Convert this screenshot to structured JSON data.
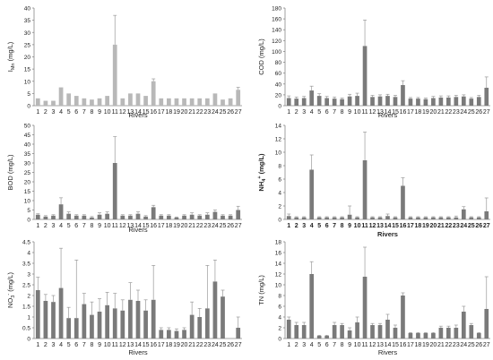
{
  "chart_data": [
    {
      "type": "bar",
      "title": "",
      "xlabel": "Rivers",
      "ylabel": "I_Mn (mg/L)",
      "ylim": [
        0,
        40
      ],
      "yticks": [
        0,
        5,
        10,
        15,
        20,
        25,
        30,
        35,
        40
      ],
      "categories": [
        "1",
        "2",
        "3",
        "4",
        "5",
        "6",
        "7",
        "8",
        "9",
        "10",
        "11",
        "12",
        "13",
        "14",
        "15",
        "16",
        "17",
        "18",
        "19",
        "20",
        "21",
        "22",
        "23",
        "24",
        "25",
        "26",
        "27"
      ],
      "values": [
        3,
        2,
        2,
        7.5,
        5,
        4,
        3,
        2.5,
        3,
        4,
        25,
        3,
        5,
        5,
        4,
        10,
        3,
        3,
        3,
        3,
        3,
        3,
        3,
        5,
        2.5,
        3,
        6.5
      ],
      "errors": [
        0,
        0,
        0,
        0,
        0,
        0,
        0,
        0,
        0,
        0,
        12,
        0,
        0,
        0,
        0,
        1,
        0,
        0,
        0,
        0,
        0,
        0,
        0,
        0,
        0,
        0,
        1
      ],
      "bar_color": "#b8b8b8",
      "grid": false
    },
    {
      "type": "bar",
      "title": "",
      "xlabel": "Rivers",
      "ylabel": "COD (mg/L)",
      "ylim": [
        0,
        180
      ],
      "yticks": [
        0,
        20,
        40,
        60,
        80,
        100,
        120,
        140,
        160,
        180
      ],
      "categories": [
        "1",
        "2",
        "3",
        "4",
        "5",
        "6",
        "7",
        "8",
        "9",
        "10",
        "11",
        "12",
        "13",
        "14",
        "15",
        "16",
        "17",
        "18",
        "19",
        "20",
        "21",
        "22",
        "23",
        "24",
        "25",
        "26",
        "27"
      ],
      "values": [
        14,
        13,
        14,
        28,
        18,
        14,
        13,
        12,
        17,
        18,
        110,
        16,
        17,
        18,
        16,
        38,
        13,
        13,
        12,
        14,
        15,
        15,
        16,
        17,
        13,
        16,
        33
      ],
      "errors": [
        4,
        3,
        3,
        8,
        4,
        3,
        3,
        2,
        4,
        5,
        48,
        3,
        3,
        3,
        3,
        8,
        2,
        2,
        2,
        3,
        3,
        3,
        3,
        3,
        2,
        3,
        20
      ],
      "bar_color": "#7a7a7a",
      "grid": false
    },
    {
      "type": "bar",
      "title": "",
      "xlabel": "Rivers",
      "ylabel": "BOD (mg/L)",
      "ylim": [
        0,
        50
      ],
      "yticks": [
        0,
        5,
        10,
        15,
        20,
        25,
        30,
        35,
        40,
        45,
        50
      ],
      "categories": [
        "1",
        "2",
        "3",
        "4",
        "5",
        "6",
        "7",
        "8",
        "9",
        "10",
        "11",
        "12",
        "13",
        "14",
        "15",
        "16",
        "17",
        "18",
        "19",
        "20",
        "21",
        "22",
        "23",
        "24",
        "25",
        "26",
        "27"
      ],
      "values": [
        2.5,
        1.5,
        2,
        8,
        3,
        2,
        2,
        1,
        2.5,
        3,
        30,
        2,
        2,
        3,
        1.5,
        6.5,
        2,
        2,
        1,
        2,
        2.5,
        2,
        2.5,
        4,
        2,
        2,
        5
      ],
      "errors": [
        0.5,
        0.5,
        0.5,
        3.5,
        1,
        0.5,
        0.5,
        0.5,
        1,
        1,
        14,
        0.5,
        0.5,
        1,
        0.5,
        1,
        0.5,
        0.5,
        0.3,
        0.5,
        1,
        0.5,
        1,
        1,
        0.5,
        0.5,
        2
      ],
      "bar_color": "#7a7a7a",
      "grid": false
    },
    {
      "type": "bar",
      "title": "",
      "xlabel": "Rivers",
      "ylabel": "NH4+ (mg/L)",
      "ylim": [
        0,
        14
      ],
      "yticks": [
        0,
        2,
        4,
        6,
        8,
        10,
        12,
        14
      ],
      "categories": [
        "1",
        "2",
        "3",
        "4",
        "5",
        "6",
        "7",
        "8",
        "9",
        "10",
        "11",
        "12",
        "13",
        "14",
        "15",
        "16",
        "17",
        "18",
        "19",
        "20",
        "21",
        "22",
        "23",
        "24",
        "25",
        "26",
        "27"
      ],
      "values": [
        0.5,
        0.3,
        0.3,
        7.4,
        0.3,
        0.3,
        0.3,
        0.3,
        0.7,
        0.3,
        8.8,
        0.3,
        0.3,
        0.5,
        0.3,
        5,
        0.3,
        0.3,
        0.3,
        0.3,
        0.3,
        0.3,
        0.3,
        1.5,
        0.3,
        0.3,
        1.2
      ],
      "errors": [
        0.3,
        0.1,
        0.1,
        2.2,
        0.1,
        0.1,
        0.1,
        0.1,
        1.3,
        0.1,
        4.2,
        0.1,
        0.1,
        0.3,
        0.1,
        1.2,
        0.1,
        0.1,
        0.1,
        0.1,
        0.1,
        0.1,
        0.2,
        0.4,
        0.1,
        0.1,
        2
      ],
      "bar_color": "#7a7a7a",
      "grid": false
    },
    {
      "type": "bar",
      "title": "",
      "xlabel": "Rivers",
      "ylabel": "NO3- (mg/L)",
      "ylim": [
        0,
        4.5
      ],
      "yticks": [
        0,
        0.5,
        1,
        1.5,
        2,
        2.5,
        3,
        3.5,
        4,
        4.5
      ],
      "ytick_labels": [
        "0",
        "0.5",
        "1",
        "1.5",
        "2",
        "2.5",
        "3",
        "3.5",
        "4",
        "4.5"
      ],
      "categories": [
        "1",
        "2",
        "3",
        "4",
        "5",
        "6",
        "7",
        "8",
        "9",
        "10",
        "11",
        "12",
        "13",
        "14",
        "15",
        "16",
        "17",
        "18",
        "19",
        "20",
        "21",
        "22",
        "23",
        "24",
        "25",
        "26",
        "27"
      ],
      "values": [
        2.25,
        1.75,
        1.7,
        2.35,
        0.95,
        0.95,
        1.6,
        1.1,
        1.25,
        1.55,
        1.4,
        1.3,
        1.8,
        1.75,
        1.3,
        1.8,
        0.4,
        0.4,
        0.35,
        0.4,
        1.1,
        1,
        1.4,
        2.65,
        1.95,
        0,
        0.5
      ],
      "errors": [
        0.6,
        0.3,
        0.3,
        1.85,
        0.5,
        2.7,
        0.5,
        0.6,
        0.6,
        0.6,
        0.7,
        0.5,
        0.8,
        0.5,
        0.5,
        1.6,
        0.1,
        0.1,
        0.1,
        0.1,
        0.6,
        0.4,
        2,
        1,
        0.3,
        0,
        0.5
      ],
      "bar_color": "#7a7a7a",
      "grid": false
    },
    {
      "type": "bar",
      "title": "",
      "xlabel": "Rivers",
      "ylabel": "TN (mg/L)",
      "ylim": [
        0,
        18
      ],
      "yticks": [
        0,
        2,
        4,
        6,
        8,
        10,
        12,
        14,
        16,
        18
      ],
      "categories": [
        "1",
        "2",
        "3",
        "4",
        "5",
        "6",
        "7",
        "8",
        "9",
        "10",
        "11",
        "12",
        "13",
        "14",
        "15",
        "16",
        "17",
        "18",
        "19",
        "20",
        "21",
        "22",
        "23",
        "24",
        "25",
        "26",
        "27"
      ],
      "values": [
        3.5,
        2.5,
        2.5,
        12,
        0.5,
        0.5,
        2.5,
        2.5,
        1.5,
        3,
        11.5,
        2.5,
        2.5,
        3.5,
        2,
        8,
        1,
        1,
        1,
        1,
        2,
        2,
        2,
        5,
        2.5,
        1,
        5.5
      ],
      "errors": [
        0.5,
        0.5,
        0.5,
        2.3,
        0.1,
        0.1,
        0.5,
        0.3,
        0.5,
        1,
        5.5,
        0.3,
        0.3,
        1,
        0.5,
        0.5,
        0.1,
        0.1,
        0.1,
        0.1,
        0.3,
        0.3,
        0.5,
        1,
        0.3,
        0.1,
        6
      ],
      "bar_color": "#7a7a7a",
      "grid": false
    }
  ]
}
